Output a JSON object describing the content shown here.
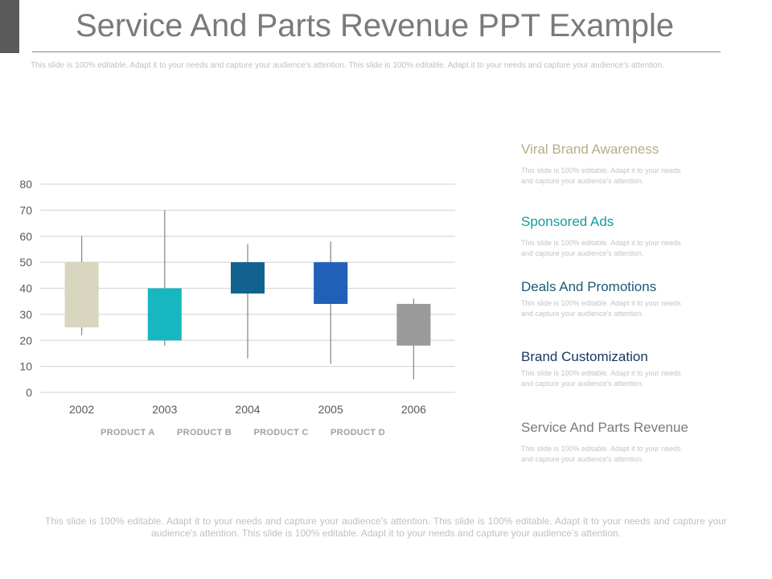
{
  "slide": {
    "title": "Service And Parts Revenue PPT Example",
    "subtitle": "This slide is 100% editable. Adapt it to your needs and capture your audience's attention. This slide is 100% editable. Adapt it to your needs and capture your audience's attention.",
    "footer": "This slide is 100% editable. Adapt it to your needs and capture your audience's attention. This slide is 100% editable. Adapt it to your needs and capture your audience's attention. This slide is 100% editable. Adapt it to your needs and capture your audience's attention."
  },
  "legend": [
    "PRODUCT A",
    "PRODUCT B",
    "PRODUCT C",
    "PRODUCT D"
  ],
  "sidebar": {
    "items": [
      {
        "heading": "Viral Brand Awareness",
        "color": "#b5ae84",
        "text": "This slide is 100% editable. Adapt it to your needs and capture your audience's attention."
      },
      {
        "heading": "Sponsored Ads",
        "color": "#129c9c",
        "text": "This slide is 100% editable. Adapt it to your needs and capture your audience's attention."
      },
      {
        "heading": "Deals And Promotions",
        "color": "#1b5a74",
        "text": "This slide is 100% editable. Adapt it to your needs and capture your audience's attention."
      },
      {
        "heading": "Brand Customization",
        "color": "#17365d",
        "text": "This slide is 100% editable. Adapt it to your needs and capture your audience's attention."
      },
      {
        "heading": "Service And Parts Revenue",
        "color": "#7a7a7a",
        "text": "This slide is 100% editable. Adapt it to your needs and capture your audience's attention."
      }
    ]
  },
  "chart_data": {
    "type": "candlestick",
    "categories": [
      "2002",
      "2003",
      "2004",
      "2005",
      "2006"
    ],
    "ylim": [
      0,
      80
    ],
    "yticks": [
      0,
      10,
      20,
      30,
      40,
      50,
      60,
      70,
      80
    ],
    "grid": true,
    "series": [
      {
        "x": "2002",
        "open": 25,
        "close": 50,
        "high": 60,
        "low": 22,
        "color": "#d8d6bf"
      },
      {
        "x": "2003",
        "open": 20,
        "close": 40,
        "high": 70,
        "low": 18,
        "color": "#17b7c2"
      },
      {
        "x": "2004",
        "open": 38,
        "close": 50,
        "high": 57,
        "low": 13,
        "color": "#11628f"
      },
      {
        "x": "2005",
        "open": 34,
        "close": 50,
        "high": 58,
        "low": 11,
        "color": "#2160b8"
      },
      {
        "x": "2006",
        "open": 18,
        "close": 34,
        "high": 36,
        "low": 5,
        "color": "#9a9a9a"
      }
    ]
  }
}
